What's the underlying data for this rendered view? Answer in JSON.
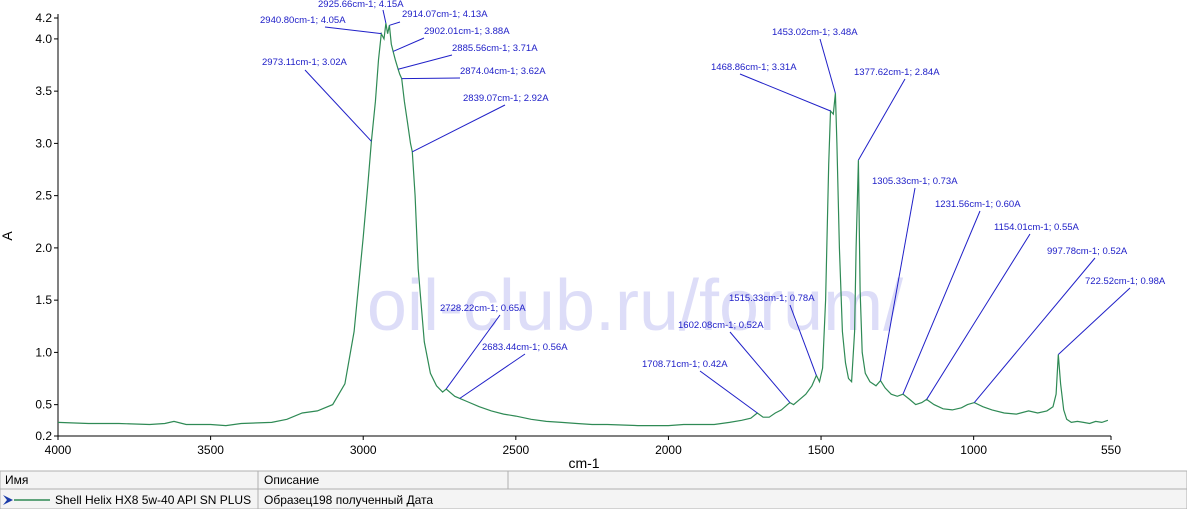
{
  "chart_data": {
    "type": "line",
    "x_label": "cm-1",
    "y_label": "A",
    "watermark": "oil-club.ru/forum/",
    "xlim": [
      4000,
      550
    ],
    "ylim": [
      0.2,
      4.2
    ],
    "xticks": [
      4000,
      3500,
      3000,
      2500,
      2000,
      1500,
      1000,
      550
    ],
    "yticks": [
      0.2,
      0.5,
      {
        "value": 1,
        "label": "1.0"
      },
      1.5,
      {
        "value": 2,
        "label": "2.0"
      },
      2.5,
      {
        "value": 3,
        "label": "3.0"
      },
      3.5,
      {
        "value": 4,
        "label": "4.0"
      },
      4.2
    ],
    "x": [
      4000,
      3900,
      3800,
      3700,
      3650,
      3620,
      3580,
      3500,
      3450,
      3400,
      3300,
      3250,
      3200,
      3150,
      3100,
      3060,
      3030,
      3000,
      2985,
      2973.11,
      2960,
      2950,
      2940.8,
      2932,
      2925.66,
      2920,
      2914.07,
      2908,
      2902.01,
      2895,
      2885.56,
      2880,
      2874.04,
      2865,
      2855,
      2845,
      2839.07,
      2830,
      2820,
      2800,
      2780,
      2760,
      2740,
      2728.22,
      2700,
      2683.44,
      2660,
      2620,
      2580,
      2540,
      2500,
      2450,
      2400,
      2350,
      2300,
      2250,
      2200,
      2100,
      2000,
      1950,
      1900,
      1850,
      1800,
      1760,
      1730,
      1708.71,
      1690,
      1670,
      1650,
      1630,
      1610,
      1602.08,
      1590,
      1570,
      1550,
      1530,
      1515.33,
      1505,
      1495,
      1485,
      1475,
      1468.86,
      1460,
      1453.02,
      1448,
      1440,
      1430,
      1420,
      1410,
      1400,
      1390,
      1385,
      1377.62,
      1372,
      1365,
      1355,
      1340,
      1320,
      1305.33,
      1290,
      1270,
      1250,
      1231.56,
      1210,
      1190,
      1170,
      1154.01,
      1130,
      1100,
      1070,
      1040,
      1020,
      997.78,
      970,
      940,
      900,
      860,
      820,
      790,
      760,
      740,
      730,
      722.52,
      715,
      705,
      695,
      680,
      660,
      640,
      620,
      600,
      580,
      560
    ],
    "series": [
      {
        "name": "Shell Helix HX8 5w-40 API SN PLUS",
        "color": "#2f8a55",
        "values": [
          0.33,
          0.32,
          0.32,
          0.31,
          0.32,
          0.34,
          0.31,
          0.31,
          0.3,
          0.32,
          0.33,
          0.36,
          0.42,
          0.44,
          0.5,
          0.7,
          1.2,
          2.1,
          2.6,
          3.02,
          3.4,
          3.8,
          4.05,
          4.0,
          4.15,
          4.05,
          4.13,
          3.95,
          3.88,
          3.8,
          3.71,
          3.66,
          3.62,
          3.4,
          3.2,
          3.0,
          2.92,
          2.5,
          1.8,
          1.1,
          0.8,
          0.68,
          0.62,
          0.65,
          0.58,
          0.56,
          0.53,
          0.48,
          0.44,
          0.41,
          0.39,
          0.36,
          0.34,
          0.33,
          0.32,
          0.31,
          0.31,
          0.3,
          0.3,
          0.31,
          0.31,
          0.31,
          0.33,
          0.35,
          0.37,
          0.42,
          0.38,
          0.38,
          0.42,
          0.45,
          0.5,
          0.52,
          0.5,
          0.55,
          0.6,
          0.68,
          0.78,
          0.72,
          0.85,
          1.5,
          2.8,
          3.31,
          3.28,
          3.48,
          3.0,
          2.0,
          1.2,
          0.9,
          0.75,
          0.72,
          1.2,
          2.0,
          2.84,
          1.6,
          1.0,
          0.8,
          0.72,
          0.68,
          0.73,
          0.66,
          0.6,
          0.58,
          0.6,
          0.55,
          0.5,
          0.52,
          0.55,
          0.5,
          0.46,
          0.45,
          0.47,
          0.5,
          0.52,
          0.48,
          0.45,
          0.42,
          0.41,
          0.44,
          0.42,
          0.44,
          0.48,
          0.6,
          0.98,
          0.7,
          0.45,
          0.36,
          0.33,
          0.34,
          0.33,
          0.32,
          0.34,
          0.33,
          0.35
        ]
      }
    ],
    "annotations": [
      {
        "x": 2925.66,
        "y": 4.15,
        "label": "2925.66cm-1; 4.15A"
      },
      {
        "x": 2914.07,
        "y": 4.13,
        "label": "2914.07cm-1; 4.13A"
      },
      {
        "x": 2940.8,
        "y": 4.05,
        "label": "2940.80cm-1; 4.05A"
      },
      {
        "x": 2902.01,
        "y": 3.88,
        "label": "2902.01cm-1; 3.88A"
      },
      {
        "x": 2885.56,
        "y": 3.71,
        "label": "2885.56cm-1; 3.71A"
      },
      {
        "x": 2973.11,
        "y": 3.02,
        "label": "2973.11cm-1; 3.02A"
      },
      {
        "x": 2874.04,
        "y": 3.62,
        "label": "2874.04cm-1; 3.62A"
      },
      {
        "x": 2839.07,
        "y": 2.92,
        "label": "2839.07cm-1; 2.92A"
      },
      {
        "x": 2728.22,
        "y": 0.65,
        "label": "2728.22cm-1; 0.65A"
      },
      {
        "x": 2683.44,
        "y": 0.56,
        "label": "2683.44cm-1; 0.56A"
      },
      {
        "x": 1708.71,
        "y": 0.42,
        "label": "1708.71cm-1; 0.42A"
      },
      {
        "x": 1602.08,
        "y": 0.52,
        "label": "1602.08cm-1; 0.52A"
      },
      {
        "x": 1515.33,
        "y": 0.78,
        "label": "1515.33cm-1; 0.78A"
      },
      {
        "x": 1468.86,
        "y": 3.31,
        "label": "1468.86cm-1; 3.31A"
      },
      {
        "x": 1453.02,
        "y": 3.48,
        "label": "1453.02cm-1; 3.48A"
      },
      {
        "x": 1377.62,
        "y": 2.84,
        "label": "1377.62cm-1; 2.84A"
      },
      {
        "x": 1305.33,
        "y": 0.73,
        "label": "1305.33cm-1; 0.73A"
      },
      {
        "x": 1231.56,
        "y": 0.6,
        "label": "1231.56cm-1; 0.60A"
      },
      {
        "x": 1154.01,
        "y": 0.55,
        "label": "1154.01cm-1; 0.55A"
      },
      {
        "x": 997.78,
        "y": 0.52,
        "label": "997.78cm-1; 0.52A"
      },
      {
        "x": 722.52,
        "y": 0.98,
        "label": "722.52cm-1; 0.98A"
      }
    ]
  },
  "legend_table": {
    "headers": [
      "Имя",
      "Описание"
    ],
    "description": "Образец198 полученный  Дата"
  }
}
